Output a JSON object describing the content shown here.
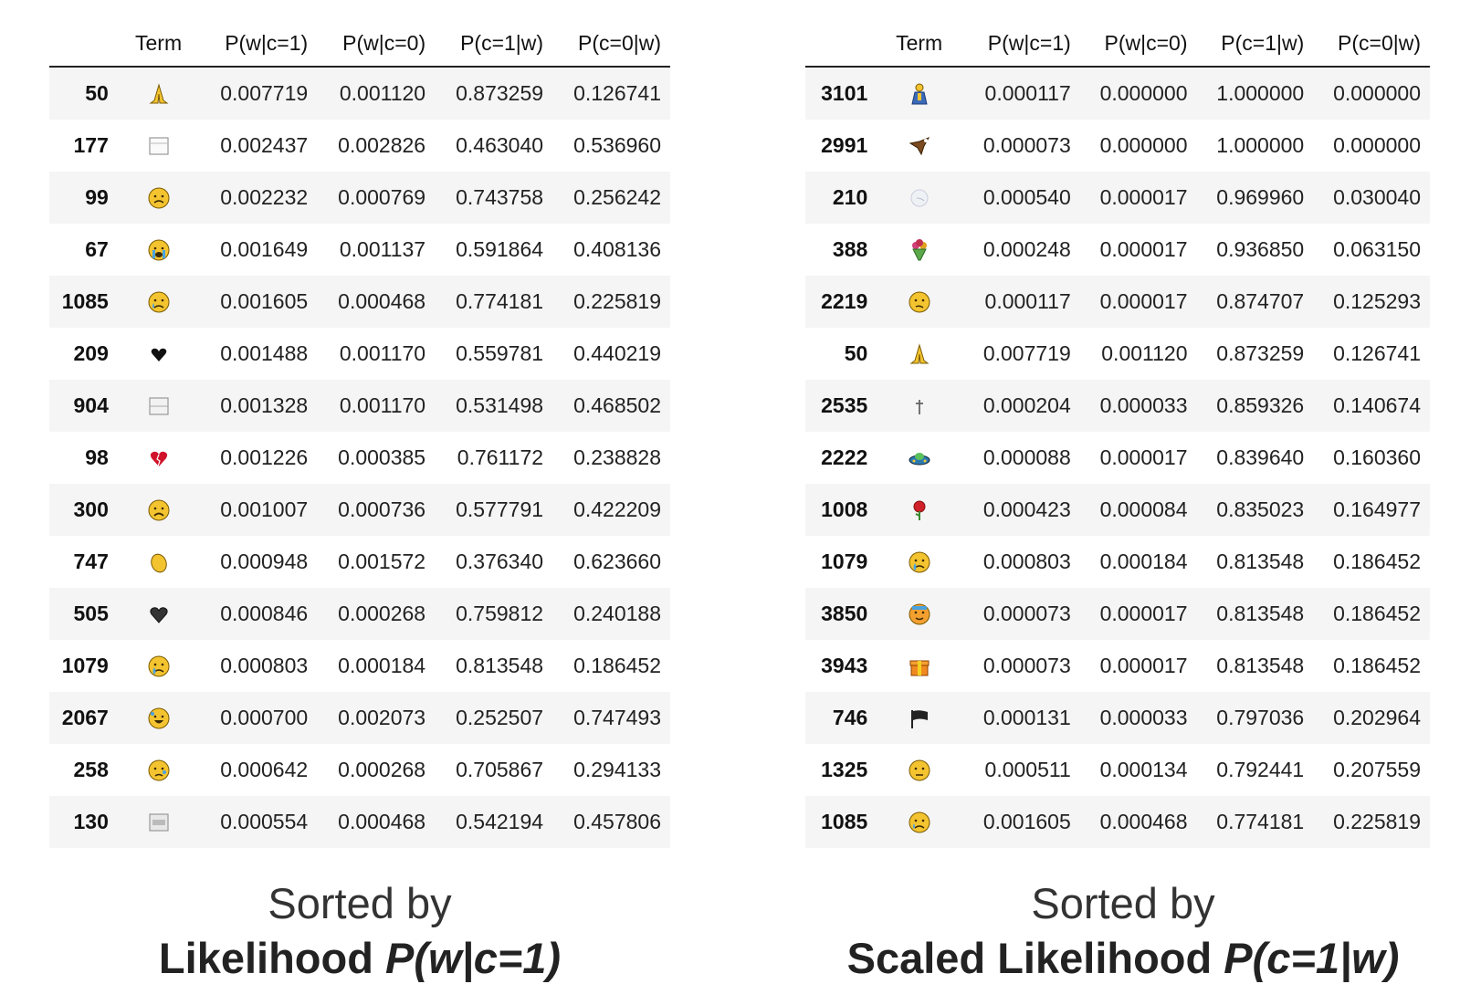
{
  "columns": [
    "",
    "Term",
    "P(w|c=1)",
    "P(w|c=0)",
    "P(c=1|w)",
    "P(c=0|w)"
  ],
  "left_table": {
    "rows": [
      {
        "idx": "50",
        "emoji": "folded-hands",
        "p_w_c1": "0.007719",
        "p_w_c0": "0.001120",
        "p_c1_w": "0.873259",
        "p_c0_w": "0.126741"
      },
      {
        "idx": "177",
        "emoji": "blank-box",
        "p_w_c1": "0.002437",
        "p_w_c0": "0.002826",
        "p_c1_w": "0.463040",
        "p_c0_w": "0.536960"
      },
      {
        "idx": "99",
        "emoji": "sad-face",
        "p_w_c1": "0.002232",
        "p_w_c0": "0.000769",
        "p_c1_w": "0.743758",
        "p_c0_w": "0.256242"
      },
      {
        "idx": "67",
        "emoji": "loudly-crying-face",
        "p_w_c1": "0.001649",
        "p_w_c0": "0.001137",
        "p_c1_w": "0.591864",
        "p_c0_w": "0.408136"
      },
      {
        "idx": "1085",
        "emoji": "crying-face",
        "p_w_c1": "0.001605",
        "p_w_c0": "0.000468",
        "p_c1_w": "0.774181",
        "p_c0_w": "0.225819"
      },
      {
        "idx": "209",
        "emoji": "black-heart-small",
        "p_w_c1": "0.001488",
        "p_w_c0": "0.001170",
        "p_c1_w": "0.559781",
        "p_c0_w": "0.440219"
      },
      {
        "idx": "904",
        "emoji": "blank-box-lines",
        "p_w_c1": "0.001328",
        "p_w_c0": "0.001170",
        "p_c1_w": "0.531498",
        "p_c0_w": "0.468502"
      },
      {
        "idx": "98",
        "emoji": "broken-heart",
        "p_w_c1": "0.001226",
        "p_w_c0": "0.000385",
        "p_c1_w": "0.761172",
        "p_c0_w": "0.238828"
      },
      {
        "idx": "300",
        "emoji": "frowning-face",
        "p_w_c1": "0.001007",
        "p_w_c0": "0.000736",
        "p_c1_w": "0.577791",
        "p_c0_w": "0.422209"
      },
      {
        "idx": "747",
        "emoji": "clapping-hands",
        "p_w_c1": "0.000948",
        "p_w_c0": "0.001572",
        "p_c1_w": "0.376340",
        "p_c0_w": "0.623660"
      },
      {
        "idx": "505",
        "emoji": "black-heart",
        "p_w_c1": "0.000846",
        "p_w_c0": "0.000268",
        "p_c1_w": "0.759812",
        "p_c0_w": "0.240188"
      },
      {
        "idx": "1079",
        "emoji": "sad-relieved-face",
        "p_w_c1": "0.000803",
        "p_w_c0": "0.000184",
        "p_c1_w": "0.813548",
        "p_c0_w": "0.186452"
      },
      {
        "idx": "2067",
        "emoji": "rofl-face",
        "p_w_c1": "0.000700",
        "p_w_c0": "0.002073",
        "p_c1_w": "0.252507",
        "p_c0_w": "0.747493"
      },
      {
        "idx": "258",
        "emoji": "sleepy-face",
        "p_w_c1": "0.000642",
        "p_w_c0": "0.000268",
        "p_c1_w": "0.705867",
        "p_c0_w": "0.294133"
      },
      {
        "idx": "130",
        "emoji": "grey-box",
        "p_w_c1": "0.000554",
        "p_w_c0": "0.000468",
        "p_c1_w": "0.542194",
        "p_c0_w": "0.457806"
      }
    ]
  },
  "right_table": {
    "rows": [
      {
        "idx": "3101",
        "emoji": "person-praying-blue",
        "p_w_c1": "0.000117",
        "p_w_c0": "0.000000",
        "p_c1_w": "1.000000",
        "p_c0_w": "0.000000"
      },
      {
        "idx": "2991",
        "emoji": "eagle",
        "p_w_c1": "0.000073",
        "p_w_c0": "0.000000",
        "p_c1_w": "1.000000",
        "p_c0_w": "0.000000"
      },
      {
        "idx": "210",
        "emoji": "wind-face",
        "p_w_c1": "0.000540",
        "p_w_c0": "0.000017",
        "p_c1_w": "0.969960",
        "p_c0_w": "0.030040"
      },
      {
        "idx": "388",
        "emoji": "bouquet",
        "p_w_c1": "0.000248",
        "p_w_c0": "0.000017",
        "p_c1_w": "0.936850",
        "p_c0_w": "0.063150"
      },
      {
        "idx": "2219",
        "emoji": "confused-face",
        "p_w_c1": "0.000117",
        "p_w_c0": "0.000017",
        "p_c1_w": "0.874707",
        "p_c0_w": "0.125293"
      },
      {
        "idx": "50",
        "emoji": "folded-hands",
        "p_w_c1": "0.007719",
        "p_w_c0": "0.001120",
        "p_c1_w": "0.873259",
        "p_c0_w": "0.126741"
      },
      {
        "idx": "2535",
        "emoji": "latin-cross",
        "p_w_c1": "0.000204",
        "p_w_c0": "0.000033",
        "p_c1_w": "0.859326",
        "p_c0_w": "0.140674"
      },
      {
        "idx": "2222",
        "emoji": "flying-saucer",
        "p_w_c1": "0.000088",
        "p_w_c0": "0.000017",
        "p_c1_w": "0.839640",
        "p_c0_w": "0.160360"
      },
      {
        "idx": "1008",
        "emoji": "rose",
        "p_w_c1": "0.000423",
        "p_w_c0": "0.000084",
        "p_c1_w": "0.835023",
        "p_c0_w": "0.164977"
      },
      {
        "idx": "1079",
        "emoji": "sad-relieved-face",
        "p_w_c1": "0.000803",
        "p_w_c0": "0.000184",
        "p_c1_w": "0.813548",
        "p_c0_w": "0.186452"
      },
      {
        "idx": "3850",
        "emoji": "hot-face",
        "p_w_c1": "0.000073",
        "p_w_c0": "0.000017",
        "p_c1_w": "0.813548",
        "p_c0_w": "0.186452"
      },
      {
        "idx": "3943",
        "emoji": "gift",
        "p_w_c1": "0.000073",
        "p_w_c0": "0.000017",
        "p_c1_w": "0.813548",
        "p_c0_w": "0.186452"
      },
      {
        "idx": "746",
        "emoji": "black-flag",
        "p_w_c1": "0.000131",
        "p_w_c0": "0.000033",
        "p_c1_w": "0.797036",
        "p_c0_w": "0.202964"
      },
      {
        "idx": "1325",
        "emoji": "pensive-face",
        "p_w_c1": "0.000511",
        "p_w_c0": "0.000134",
        "p_c1_w": "0.792441",
        "p_c0_w": "0.207559"
      },
      {
        "idx": "1085",
        "emoji": "crying-face",
        "p_w_c1": "0.001605",
        "p_w_c0": "0.000468",
        "p_c1_w": "0.774181",
        "p_c0_w": "0.225819"
      }
    ]
  },
  "captions": {
    "left": {
      "line1": "Sorted by",
      "line2_bold": "Likelihood ",
      "line2_italic": "P(w|c=1)"
    },
    "right": {
      "line1": "Sorted by",
      "line2_bold": "Scaled Likelihood ",
      "line2_italic": "P(c=1|w)"
    }
  }
}
